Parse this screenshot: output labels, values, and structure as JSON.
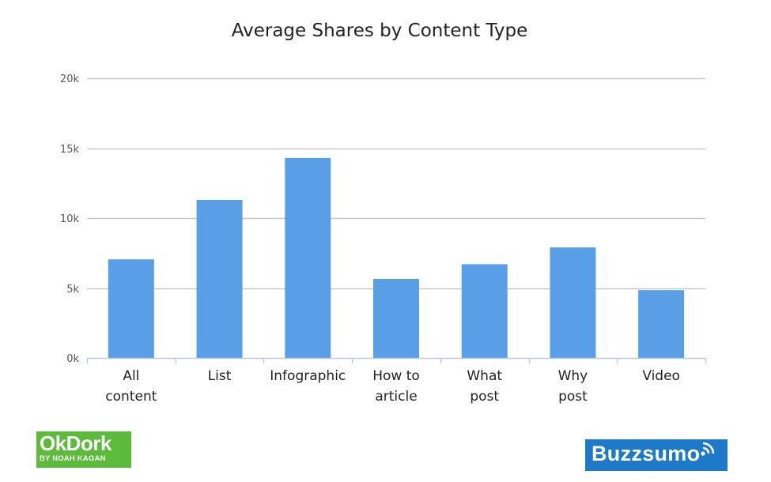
{
  "chart_data": {
    "type": "bar",
    "title": "Average Shares by Content Type",
    "categories": [
      [
        "All",
        "content"
      ],
      [
        "List"
      ],
      [
        "Infographic"
      ],
      [
        "How to",
        "article"
      ],
      [
        "What",
        "post"
      ],
      [
        "Why",
        "post"
      ],
      [
        "Video"
      ]
    ],
    "values": [
      7050,
      11300,
      14300,
      5650,
      6700,
      7900,
      4850
    ],
    "ylim": [
      0,
      20000
    ],
    "yticks": [
      0,
      5000,
      10000,
      15000,
      20000
    ],
    "ytick_labels": [
      "0k",
      "5k",
      "10k",
      "15k",
      "20k"
    ],
    "grid": true,
    "bar_color": "#589fe8",
    "grid_color": "#c8c8c8"
  },
  "logos": {
    "okdork": {
      "main": "OkDork",
      "sub": "BY NOAH KAGAN",
      "color": "#5dbb3b"
    },
    "buzzsumo": {
      "text": "Buzzsumo",
      "color": "#1e7ac9"
    }
  }
}
